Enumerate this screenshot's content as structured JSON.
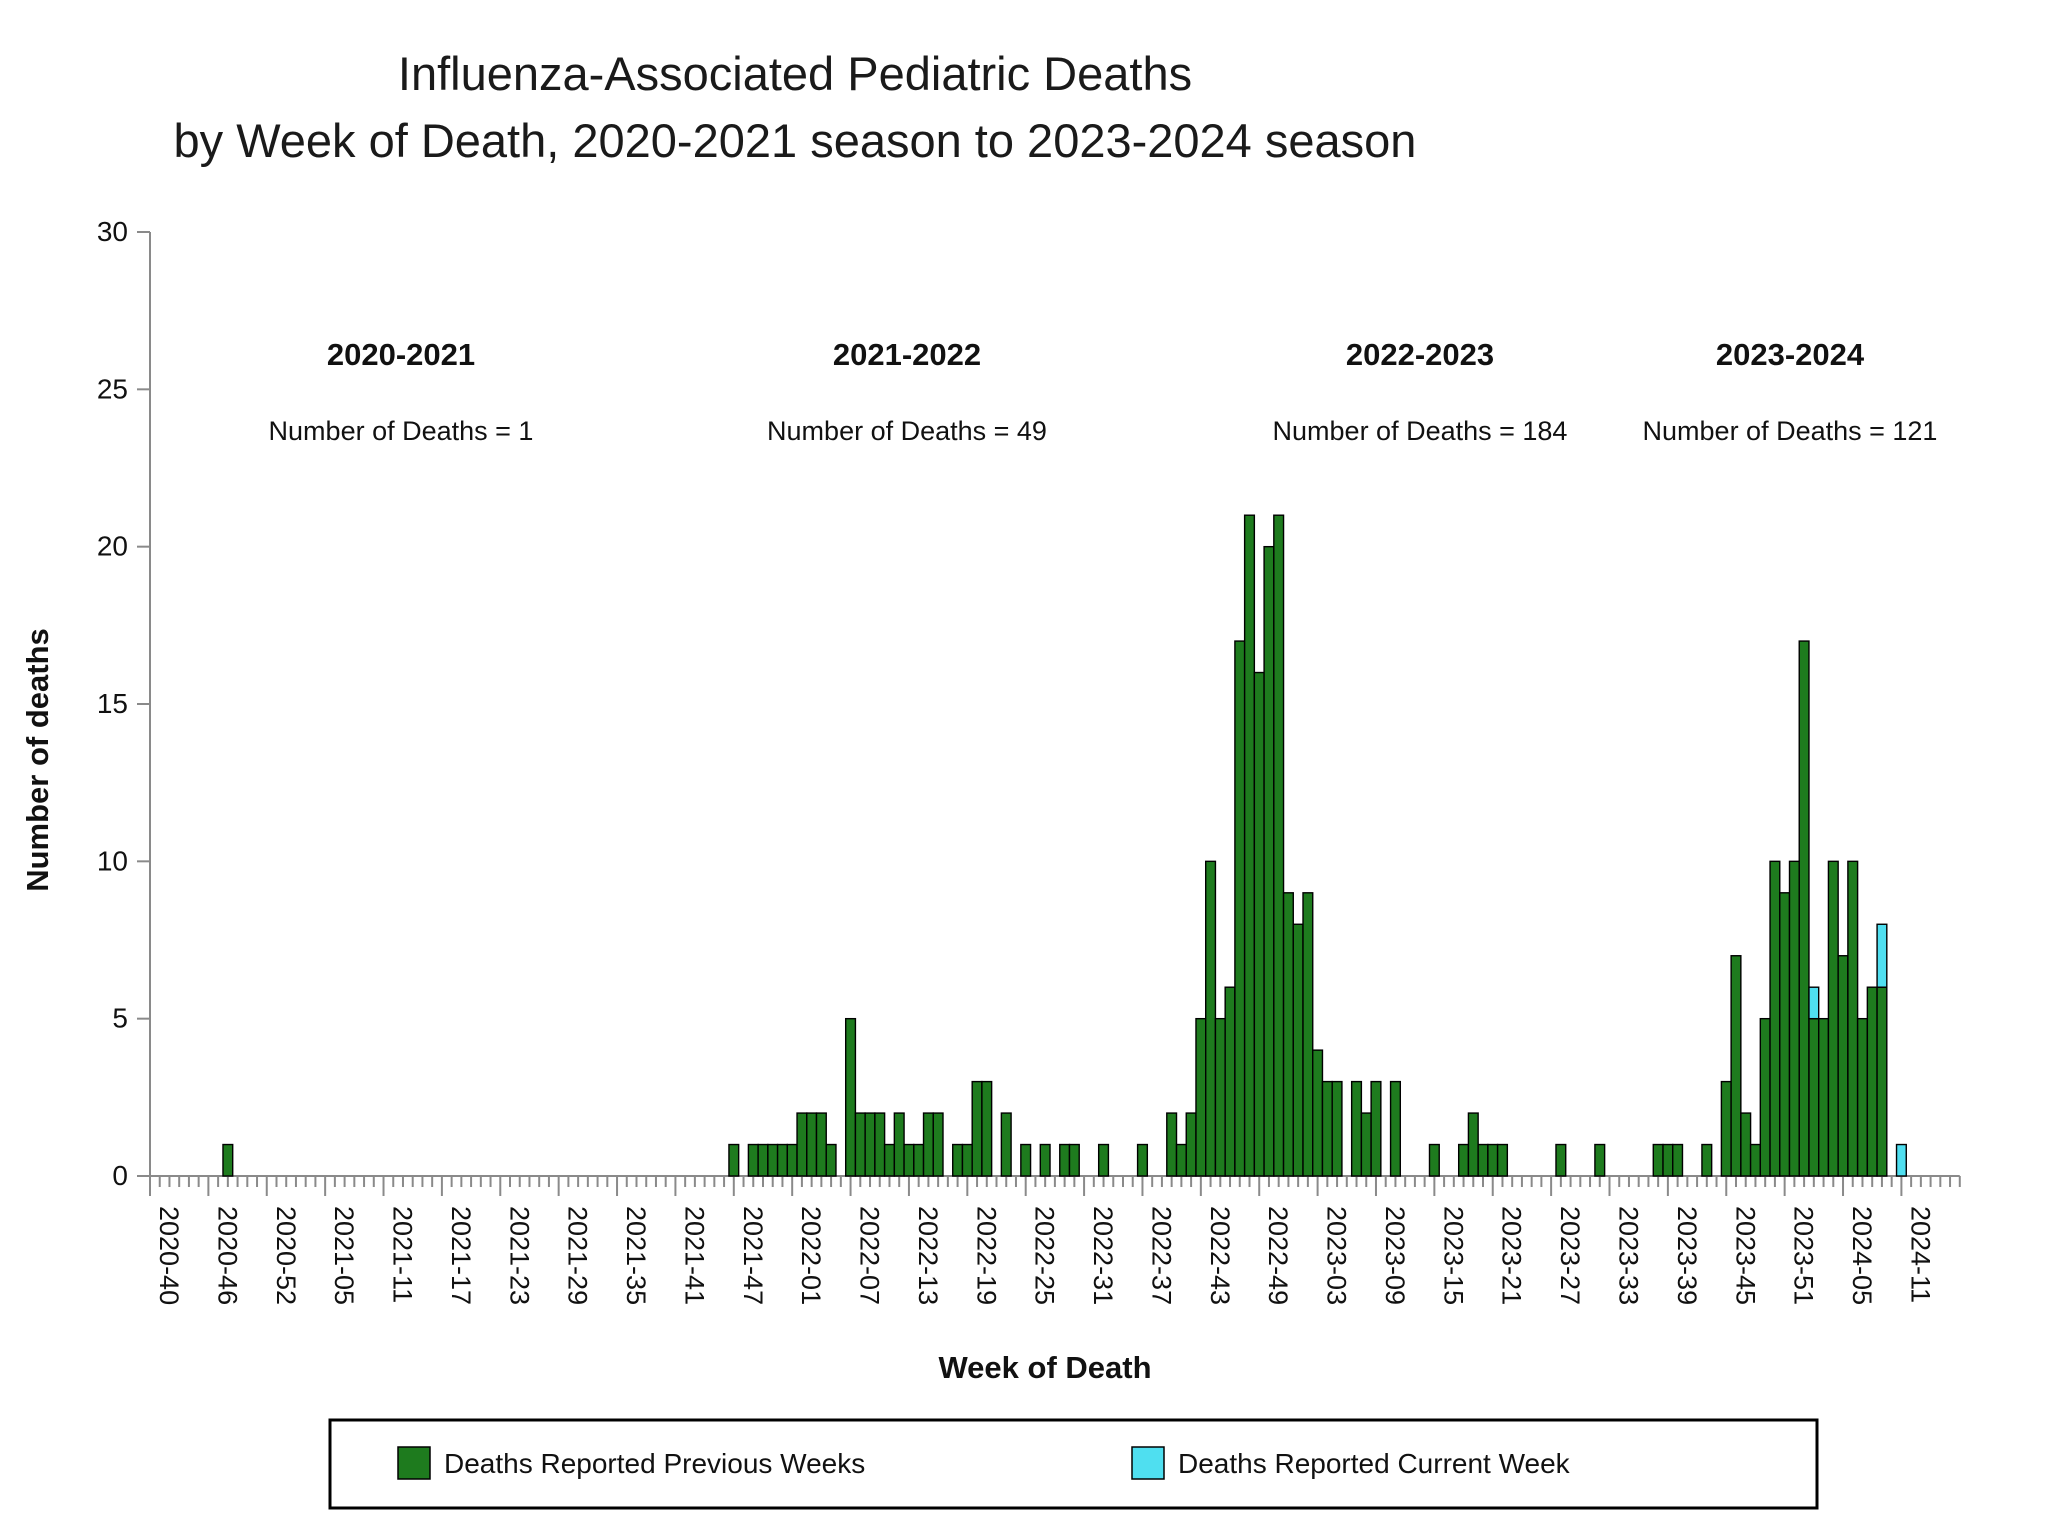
{
  "title": {
    "line1": "Influenza-Associated Pediatric Deaths",
    "line2": "by Week of Death, 2020-2021 season to 2023-2024 season"
  },
  "seasons": [
    {
      "label": "2020-2021",
      "count_text": "Number of Deaths = 1",
      "total": 1
    },
    {
      "label": "2021-2022",
      "count_text": "Number of Deaths = 49",
      "total": 49
    },
    {
      "label": "2022-2023",
      "count_text": "Number of Deaths = 184",
      "total": 184
    },
    {
      "label": "2023-2024",
      "count_text": "Number of Deaths = 121",
      "total": 121
    }
  ],
  "axes": {
    "y_label": "Number of deaths",
    "x_label": "Week of Death",
    "y_ticks": [
      0,
      5,
      10,
      15,
      20,
      25,
      30
    ]
  },
  "legend": {
    "previous_label": "Deaths Reported Previous Weeks",
    "current_label": "Deaths Reported Current Week"
  },
  "colors": {
    "previous": "#1E7B1E",
    "current": "#4FDFF0",
    "bar_stroke": "#000000",
    "axis_line": "#8a8a8a",
    "legend_border": "#000000"
  },
  "chart_data": {
    "type": "bar",
    "title": "Influenza-Associated Pediatric Deaths by Week of Death, 2020-2021 season to 2023-2024 season",
    "xlabel": "Week of Death",
    "ylabel": "Number of deaths",
    "ylim": [
      0,
      30
    ],
    "grid": false,
    "legend_position": "bottom",
    "first_week": "2020-40",
    "weeks_per_year": {
      "2020": [
        40,
        53
      ],
      "2021": [
        1,
        52
      ],
      "2022": [
        1,
        52
      ],
      "2023": [
        1,
        52
      ],
      "2024": [
        1,
        11
      ]
    },
    "tick_label_interval": 6,
    "x_tick_labels": [
      "2020-40",
      "2020-46",
      "2020-52",
      "2021-05",
      "2021-11",
      "2021-17",
      "2021-23",
      "2021-29",
      "2021-35",
      "2021-41",
      "2021-47",
      "2022-01",
      "2022-07",
      "2022-13",
      "2022-19",
      "2022-25",
      "2022-31",
      "2022-37",
      "2022-43",
      "2022-49",
      "2023-03",
      "2023-09",
      "2023-15",
      "2023-21",
      "2023-27",
      "2023-33",
      "2023-39",
      "2023-45",
      "2023-51",
      "2024-05",
      "2024-11"
    ],
    "series": [
      {
        "name": "Deaths Reported Previous Weeks",
        "values": [
          0,
          0,
          0,
          0,
          0,
          0,
          0,
          0,
          1,
          0,
          0,
          0,
          0,
          0,
          0,
          0,
          0,
          0,
          0,
          0,
          0,
          0,
          0,
          0,
          0,
          0,
          0,
          0,
          0,
          0,
          0,
          0,
          0,
          0,
          0,
          0,
          0,
          0,
          0,
          0,
          0,
          0,
          0,
          0,
          0,
          0,
          0,
          0,
          0,
          0,
          0,
          0,
          0,
          0,
          0,
          0,
          0,
          0,
          0,
          0,
          1,
          0,
          1,
          1,
          1,
          1,
          1,
          2,
          2,
          2,
          1,
          0,
          5,
          2,
          2,
          2,
          1,
          2,
          1,
          1,
          2,
          2,
          0,
          1,
          1,
          3,
          3,
          0,
          2,
          0,
          1,
          0,
          1,
          0,
          1,
          1,
          0,
          0,
          1,
          0,
          0,
          0,
          1,
          0,
          0,
          2,
          1,
          2,
          5,
          10,
          5,
          6,
          17,
          21,
          16,
          20,
          21,
          9,
          8,
          9,
          4,
          3,
          3,
          0,
          3,
          2,
          3,
          0,
          3,
          0,
          0,
          0,
          1,
          0,
          0,
          1,
          2,
          1,
          1,
          1,
          0,
          0,
          0,
          0,
          0,
          1,
          0,
          0,
          0,
          1,
          0,
          0,
          0,
          0,
          0,
          1,
          1,
          1,
          0,
          0,
          1,
          0,
          3,
          7,
          2,
          1,
          5,
          10,
          9,
          10,
          17,
          5,
          5,
          10,
          7,
          10,
          5,
          6,
          6,
          0,
          0
        ]
      },
      {
        "name": "Deaths Reported Current Week",
        "values": [
          0,
          0,
          0,
          0,
          0,
          0,
          0,
          0,
          0,
          0,
          0,
          0,
          0,
          0,
          0,
          0,
          0,
          0,
          0,
          0,
          0,
          0,
          0,
          0,
          0,
          0,
          0,
          0,
          0,
          0,
          0,
          0,
          0,
          0,
          0,
          0,
          0,
          0,
          0,
          0,
          0,
          0,
          0,
          0,
          0,
          0,
          0,
          0,
          0,
          0,
          0,
          0,
          0,
          0,
          0,
          0,
          0,
          0,
          0,
          0,
          0,
          0,
          0,
          0,
          0,
          0,
          0,
          0,
          0,
          0,
          0,
          0,
          0,
          0,
          0,
          0,
          0,
          0,
          0,
          0,
          0,
          0,
          0,
          0,
          0,
          0,
          0,
          0,
          0,
          0,
          0,
          0,
          0,
          0,
          0,
          0,
          0,
          0,
          0,
          0,
          0,
          0,
          0,
          0,
          0,
          0,
          0,
          0,
          0,
          0,
          0,
          0,
          0,
          0,
          0,
          0,
          0,
          0,
          0,
          0,
          0,
          0,
          0,
          0,
          0,
          0,
          0,
          0,
          0,
          0,
          0,
          0,
          0,
          0,
          0,
          0,
          0,
          0,
          0,
          0,
          0,
          0,
          0,
          0,
          0,
          0,
          0,
          0,
          0,
          0,
          0,
          0,
          0,
          0,
          0,
          0,
          0,
          0,
          0,
          0,
          0,
          0,
          0,
          0,
          0,
          0,
          0,
          0,
          0,
          0,
          0,
          1,
          0,
          0,
          0,
          0,
          0,
          0,
          2,
          0,
          1
        ]
      }
    ],
    "season_totals": {
      "2020-2021": 1,
      "2021-2022": 49,
      "2022-2023": 184,
      "2023-2024": 121
    }
  },
  "layout_text_note": ""
}
